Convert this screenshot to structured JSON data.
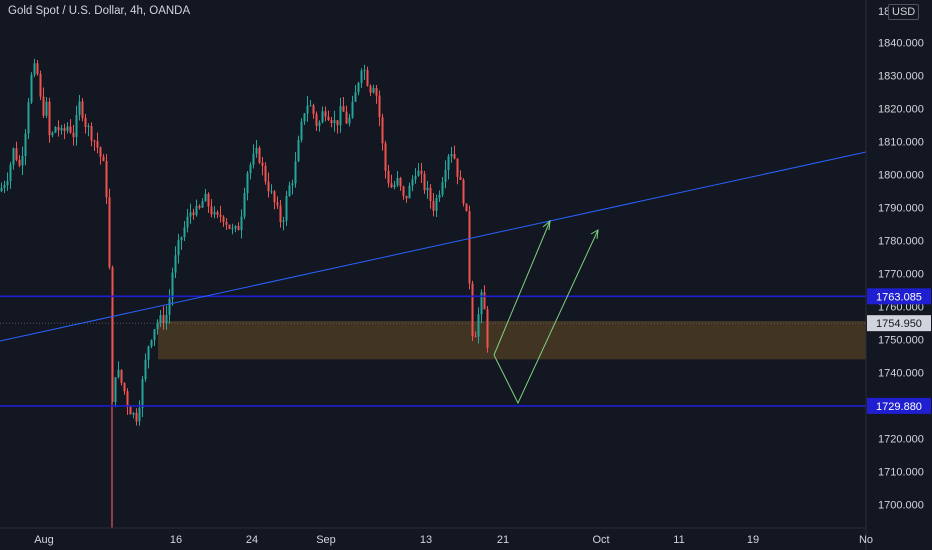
{
  "header": {
    "symbol_title": "Gold Spot / U.S. Dollar, 4h, OANDA",
    "currency": "USD",
    "top_price_label": "18"
  },
  "chart_data": {
    "type": "candlestick",
    "title": "Gold Spot / U.S. Dollar, 4h, OANDA",
    "ylim": [
      1692,
      1852
    ],
    "y_ticks": [
      1700,
      1710,
      1720,
      1730,
      1740,
      1750,
      1760,
      1770,
      1780,
      1790,
      1800,
      1810,
      1820,
      1830,
      1840
    ],
    "y_tick_labels": [
      "1700.000",
      "1710.000",
      "1720.000",
      "1730.000",
      "1740.000",
      "1750.000",
      "1760.000",
      "1770.000",
      "1780.000",
      "1790.000",
      "1800.000",
      "1810.000",
      "1820.000",
      "1830.000",
      "1840.000"
    ],
    "x_ticks": [
      "Aug",
      "16",
      "24",
      "Sep",
      "13",
      "21",
      "Oct",
      "11",
      "19",
      "No"
    ],
    "price_path": [
      [
        0,
        1795
      ],
      [
        8,
        1800
      ],
      [
        14,
        1808
      ],
      [
        20,
        1802
      ],
      [
        26,
        1815
      ],
      [
        30,
        1828
      ],
      [
        34,
        1832
      ],
      [
        38,
        1830
      ],
      [
        42,
        1818
      ],
      [
        46,
        1822
      ],
      [
        50,
        1810
      ],
      [
        56,
        1815
      ],
      [
        62,
        1812
      ],
      [
        68,
        1815
      ],
      [
        74,
        1812
      ],
      [
        80,
        1822
      ],
      [
        86,
        1815
      ],
      [
        92,
        1812
      ],
      [
        98,
        1808
      ],
      [
        104,
        1802
      ],
      [
        108,
        1790
      ],
      [
        110,
        1765
      ],
      [
        112,
        1728
      ],
      [
        116,
        1742
      ],
      [
        120,
        1738
      ],
      [
        124,
        1735
      ],
      [
        128,
        1730
      ],
      [
        132,
        1728
      ],
      [
        136,
        1726
      ],
      [
        140,
        1732
      ],
      [
        144,
        1740
      ],
      [
        148,
        1748
      ],
      [
        152,
        1752
      ],
      [
        156,
        1755
      ],
      [
        162,
        1756
      ],
      [
        168,
        1758
      ],
      [
        172,
        1770
      ],
      [
        176,
        1775
      ],
      [
        180,
        1780
      ],
      [
        186,
        1785
      ],
      [
        192,
        1790
      ],
      [
        198,
        1788
      ],
      [
        204,
        1793
      ],
      [
        210,
        1790
      ],
      [
        216,
        1786
      ],
      [
        222,
        1788
      ],
      [
        228,
        1785
      ],
      [
        234,
        1782
      ],
      [
        240,
        1785
      ],
      [
        246,
        1800
      ],
      [
        252,
        1804
      ],
      [
        258,
        1807
      ],
      [
        264,
        1800
      ],
      [
        270,
        1795
      ],
      [
        276,
        1790
      ],
      [
        282,
        1785
      ],
      [
        288,
        1795
      ],
      [
        294,
        1800
      ],
      [
        300,
        1812
      ],
      [
        306,
        1822
      ],
      [
        312,
        1820
      ],
      [
        318,
        1814
      ],
      [
        324,
        1820
      ],
      [
        330,
        1818
      ],
      [
        336,
        1815
      ],
      [
        342,
        1820
      ],
      [
        348,
        1815
      ],
      [
        354,
        1822
      ],
      [
        358,
        1828
      ],
      [
        362,
        1834
      ],
      [
        366,
        1830
      ],
      [
        370,
        1826
      ],
      [
        374,
        1828
      ],
      [
        378,
        1822
      ],
      [
        382,
        1810
      ],
      [
        386,
        1800
      ],
      [
        392,
        1796
      ],
      [
        398,
        1798
      ],
      [
        404,
        1792
      ],
      [
        410,
        1796
      ],
      [
        416,
        1802
      ],
      [
        422,
        1798
      ],
      [
        428,
        1794
      ],
      [
        434,
        1790
      ],
      [
        440,
        1796
      ],
      [
        446,
        1804
      ],
      [
        450,
        1808
      ],
      [
        454,
        1806
      ],
      [
        458,
        1800
      ],
      [
        462,
        1795
      ],
      [
        466,
        1790
      ],
      [
        470,
        1765
      ],
      [
        473,
        1750
      ],
      [
        476,
        1753
      ],
      [
        480,
        1760
      ],
      [
        483,
        1765
      ],
      [
        486,
        1752
      ],
      [
        488,
        1748
      ]
    ],
    "horizontal_levels": [
      {
        "price": 1763.085,
        "label": "1763.085",
        "color": "#1f1fd1"
      },
      {
        "price": 1729.88,
        "label": "1729.880",
        "color": "#1f1fd1"
      }
    ],
    "current_price": {
      "price": 1754.95,
      "label": "1754.950"
    },
    "zone": {
      "from_price": 1744,
      "to_price": 1755.6,
      "color": "#4a3a22"
    },
    "trendline": {
      "color": "#2962ff"
    },
    "projection_color": "#7fd17f"
  },
  "colors": {
    "background": "#131722",
    "bull": "#26a69a",
    "bear": "#ef5350",
    "axis_text": "#d1d4dc"
  }
}
